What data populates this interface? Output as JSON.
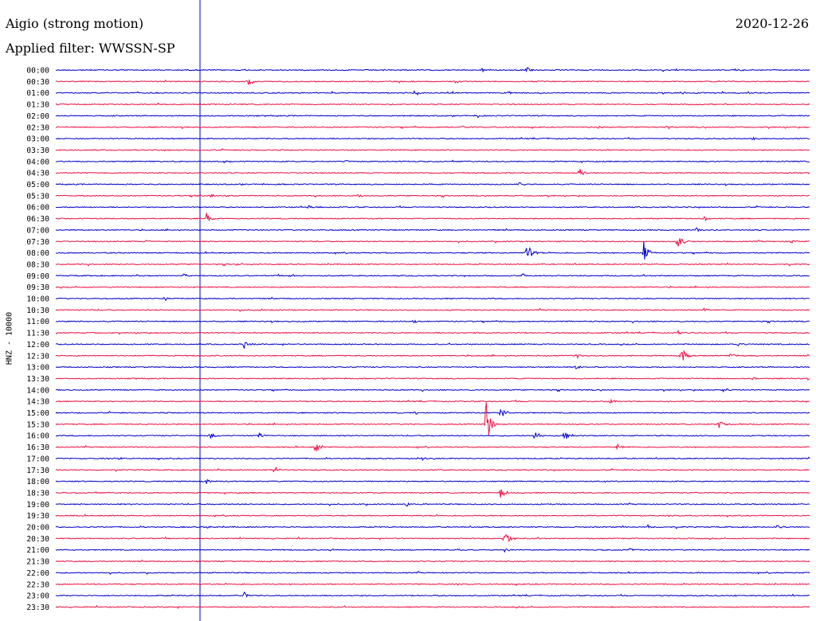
{
  "header": {
    "title": "Aigio (strong motion)",
    "filter": "Applied filter: WWSSN-SP",
    "date": "2020-12-26"
  },
  "chart_data": {
    "type": "line",
    "title": "Aigio (strong motion)",
    "subtitle": "Applied filter: WWSSN-SP",
    "ylabel": "HNZ - 10000",
    "date": "2020-12-26",
    "colors": [
      "#0000cc",
      "#ee1144"
    ],
    "rows": [
      {
        "label": "00:00",
        "events": [
          [
            0.565,
            3
          ],
          [
            0.625,
            4
          ],
          [
            0.905,
            2
          ]
        ]
      },
      {
        "label": "00:30",
        "events": [
          [
            0.255,
            5
          ]
        ]
      },
      {
        "label": "01:00",
        "events": [
          [
            0.475,
            3
          ],
          [
            0.6,
            2
          ],
          [
            0.83,
            2
          ]
        ]
      },
      {
        "label": "01:30",
        "events": []
      },
      {
        "label": "02:00",
        "events": [
          [
            0.56,
            3
          ]
        ]
      },
      {
        "label": "02:30",
        "events": [
          [
            0.54,
            2
          ],
          [
            0.72,
            2
          ],
          [
            0.81,
            2
          ]
        ]
      },
      {
        "label": "03:00",
        "events": [
          [
            0.925,
            2
          ]
        ]
      },
      {
        "label": "03:30",
        "events": []
      },
      {
        "label": "04:00",
        "events": [
          [
            0.225,
            2
          ],
          [
            0.385,
            2
          ]
        ]
      },
      {
        "label": "04:30",
        "events": [
          [
            0.695,
            7
          ]
        ]
      },
      {
        "label": "05:00",
        "events": [
          [
            0.615,
            3
          ]
        ]
      },
      {
        "label": "05:30",
        "events": [
          [
            0.185,
            2
          ],
          [
            0.205,
            2
          ],
          [
            0.225,
            2
          ],
          [
            0.4,
            2
          ]
        ]
      },
      {
        "label": "06:00",
        "events": [
          [
            0.335,
            2
          ]
        ]
      },
      {
        "label": "06:30",
        "events": [
          [
            0.2,
            8
          ],
          [
            0.86,
            4
          ]
        ]
      },
      {
        "label": "07:00",
        "events": [
          [
            0.85,
            3
          ]
        ]
      },
      {
        "label": "07:30",
        "events": [
          [
            0.12,
            2
          ],
          [
            0.825,
            14
          ],
          [
            0.975,
            3
          ]
        ]
      },
      {
        "label": "08:00",
        "events": [
          [
            0.625,
            18
          ],
          [
            0.78,
            16
          ]
        ]
      },
      {
        "label": "08:30",
        "events": [
          [
            0.24,
            2
          ]
        ]
      },
      {
        "label": "09:00",
        "events": [
          [
            0.17,
            3
          ],
          [
            0.31,
            3
          ],
          [
            0.62,
            3
          ]
        ]
      },
      {
        "label": "09:30",
        "events": []
      },
      {
        "label": "10:00",
        "events": [
          [
            0.145,
            3
          ]
        ]
      },
      {
        "label": "10:30",
        "events": [
          [
            0.27,
            2
          ],
          [
            0.86,
            3
          ]
        ]
      },
      {
        "label": "11:00",
        "events": [
          [
            0.475,
            3
          ]
        ]
      },
      {
        "label": "11:30",
        "events": [
          [
            0.825,
            3
          ]
        ]
      },
      {
        "label": "12:00",
        "events": [
          [
            0.25,
            6
          ],
          [
            0.905,
            3
          ]
        ]
      },
      {
        "label": "12:30",
        "events": [
          [
            0.69,
            4
          ],
          [
            0.83,
            12
          ],
          [
            0.895,
            4
          ]
        ]
      },
      {
        "label": "13:00",
        "events": [
          [
            0.69,
            3
          ]
        ]
      },
      {
        "label": "13:30",
        "events": [
          [
            0.925,
            2
          ]
        ]
      },
      {
        "label": "14:00",
        "events": [
          [
            0.885,
            5
          ]
        ]
      },
      {
        "label": "14:30",
        "events": [
          [
            0.735,
            3
          ]
        ]
      },
      {
        "label": "15:00",
        "events": [
          [
            0.59,
            12
          ],
          [
            0.475,
            3
          ]
        ]
      },
      {
        "label": "15:30",
        "events": [
          [
            0.57,
            40
          ],
          [
            0.88,
            6
          ]
        ]
      },
      {
        "label": "16:00",
        "events": [
          [
            0.205,
            5
          ],
          [
            0.27,
            4
          ],
          [
            0.635,
            8
          ],
          [
            0.675,
            10
          ]
        ]
      },
      {
        "label": "16:30",
        "events": [
          [
            0.345,
            10
          ],
          [
            0.745,
            4
          ]
        ]
      },
      {
        "label": "17:00",
        "events": [
          [
            0.485,
            4
          ],
          [
            0.085,
            2
          ]
        ]
      },
      {
        "label": "17:30",
        "events": [
          [
            0.29,
            8
          ]
        ]
      },
      {
        "label": "18:00",
        "events": [
          [
            0.2,
            3
          ]
        ]
      },
      {
        "label": "18:30",
        "events": [
          [
            0.59,
            8
          ]
        ]
      },
      {
        "label": "19:00",
        "events": [
          [
            0.465,
            3
          ]
        ]
      },
      {
        "label": "19:30",
        "events": []
      },
      {
        "label": "20:00",
        "events": [
          [
            0.785,
            3
          ],
          [
            0.955,
            3
          ],
          [
            0.2,
            2
          ]
        ]
      },
      {
        "label": "20:30",
        "events": [
          [
            0.595,
            16
          ]
        ]
      },
      {
        "label": "21:00",
        "events": [
          [
            0.365,
            3
          ],
          [
            0.53,
            3
          ],
          [
            0.595,
            3
          ],
          [
            0.76,
            3
          ]
        ]
      },
      {
        "label": "21:30",
        "events": []
      },
      {
        "label": "22:00",
        "events": []
      },
      {
        "label": "22:30",
        "events": []
      },
      {
        "label": "23:00",
        "events": [
          [
            0.25,
            5
          ],
          [
            0.9,
            2
          ]
        ]
      },
      {
        "label": "23:30",
        "events": []
      }
    ]
  }
}
